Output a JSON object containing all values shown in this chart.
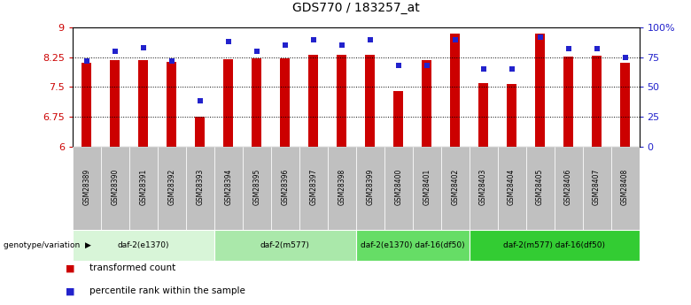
{
  "title": "GDS770 / 183257_at",
  "samples": [
    "GSM28389",
    "GSM28390",
    "GSM28391",
    "GSM28392",
    "GSM28393",
    "GSM28394",
    "GSM28395",
    "GSM28396",
    "GSM28397",
    "GSM28398",
    "GSM28399",
    "GSM28400",
    "GSM28401",
    "GSM28402",
    "GSM28403",
    "GSM28404",
    "GSM28405",
    "GSM28406",
    "GSM28407",
    "GSM28408"
  ],
  "bar_values": [
    8.1,
    8.18,
    8.18,
    8.13,
    6.75,
    8.2,
    8.22,
    8.22,
    8.3,
    8.3,
    8.3,
    7.4,
    8.18,
    8.85,
    7.6,
    7.58,
    8.85,
    8.27,
    8.28,
    8.1
  ],
  "blue_values": [
    72,
    80,
    83,
    72,
    38,
    88,
    80,
    85,
    90,
    85,
    90,
    68,
    68,
    90,
    65,
    65,
    92,
    82,
    82,
    75
  ],
  "ymin": 6.0,
  "ymax": 9.0,
  "yticks": [
    6.0,
    6.75,
    7.5,
    8.25,
    9.0
  ],
  "ytick_labels": [
    "6",
    "6.75",
    "7.5",
    "8.25",
    "9"
  ],
  "right_yticks": [
    0,
    25,
    50,
    75,
    100
  ],
  "right_ytick_labels": [
    "0",
    "25",
    "50",
    "75",
    "100%"
  ],
  "hlines": [
    6.75,
    7.5,
    8.25
  ],
  "bar_color": "#cc0000",
  "blue_color": "#2222cc",
  "genotype_groups": [
    {
      "label": "daf-2(e1370)",
      "start": 0,
      "end": 4,
      "color": "#d8f5d8"
    },
    {
      "label": "daf-2(m577)",
      "start": 5,
      "end": 9,
      "color": "#aae8aa"
    },
    {
      "label": "daf-2(e1370) daf-16(df50)",
      "start": 10,
      "end": 13,
      "color": "#66dd66"
    },
    {
      "label": "daf-2(m577) daf-16(df50)",
      "start": 14,
      "end": 19,
      "color": "#33cc33"
    }
  ],
  "genotype_label": "genotype/variation",
  "legend_bar_label": "transformed count",
  "legend_blue_label": "percentile rank within the sample",
  "bar_color_hex": "#cc0000",
  "blue_color_hex": "#2222cc",
  "sample_bg": "#c0c0c0",
  "bar_width": 0.35
}
